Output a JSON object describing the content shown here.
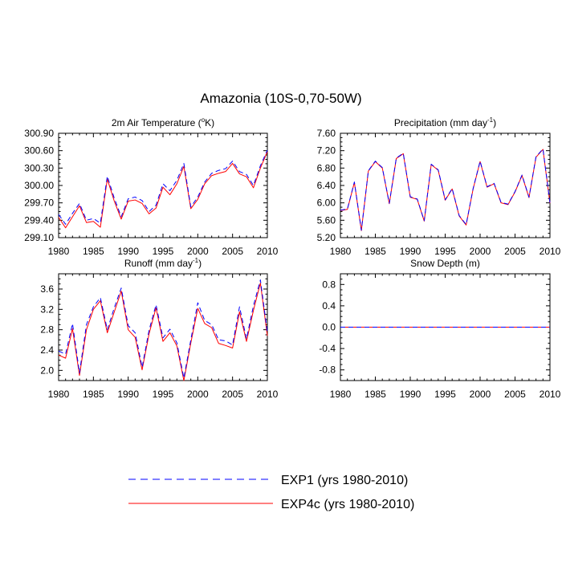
{
  "title": "Amazonia (10S-0,70-50W)",
  "legend": {
    "items": [
      {
        "label": "EXP1 (yrs 1980-2010)",
        "color": "#0000ff",
        "dash": "dashed"
      },
      {
        "label": "EXP4c (yrs 1980-2010)",
        "color": "#ff0000",
        "dash": "solid"
      }
    ]
  },
  "chart_data": [
    {
      "type": "line",
      "title_main": "2m Air Temperature (",
      "title_sup": "o",
      "title_end": "K)",
      "x": [
        1980,
        1981,
        1982,
        1983,
        1984,
        1985,
        1986,
        1987,
        1988,
        1989,
        1990,
        1991,
        1992,
        1993,
        1994,
        1995,
        1996,
        1997,
        1998,
        1999,
        2000,
        2001,
        2002,
        2003,
        2004,
        2005,
        2006,
        2007,
        2008,
        2009,
        2010
      ],
      "xlim": [
        1980,
        2010
      ],
      "xticks": [
        1980,
        1985,
        1990,
        1995,
        2000,
        2005,
        2010
      ],
      "ylim": [
        299.1,
        300.9
      ],
      "yticks": [
        299.1,
        299.4,
        299.7,
        300.0,
        300.3,
        300.6,
        300.9
      ],
      "ytick_labels": [
        "299.10",
        "299.40",
        "299.70",
        "300.00",
        "300.30",
        "300.60",
        "300.90"
      ],
      "series": [
        {
          "name": "EXP1 (yrs 1980-2010)",
          "values": [
            299.5,
            299.33,
            299.52,
            299.69,
            299.4,
            299.43,
            299.35,
            300.16,
            299.78,
            299.46,
            299.77,
            299.8,
            299.74,
            299.55,
            299.66,
            300.03,
            299.91,
            300.09,
            300.38,
            299.63,
            299.8,
            300.06,
            300.21,
            300.26,
            300.29,
            300.42,
            300.24,
            300.19,
            300.0,
            300.34,
            300.61
          ]
        },
        {
          "name": "EXP4c (yrs 1980-2010)",
          "values": [
            299.45,
            299.27,
            299.46,
            299.65,
            299.36,
            299.38,
            299.28,
            300.11,
            299.73,
            299.42,
            299.73,
            299.75,
            299.69,
            299.51,
            299.61,
            299.97,
            299.84,
            300.03,
            300.33,
            299.6,
            299.76,
            300.03,
            300.17,
            300.21,
            300.24,
            300.38,
            300.2,
            300.15,
            299.96,
            300.3,
            300.58
          ]
        }
      ]
    },
    {
      "type": "line",
      "title_main": "Precipitation (mm day",
      "title_sup": "-1",
      "title_end": ")",
      "x": [
        1980,
        1981,
        1982,
        1983,
        1984,
        1985,
        1986,
        1987,
        1988,
        1989,
        1990,
        1991,
        1992,
        1993,
        1994,
        1995,
        1996,
        1997,
        1998,
        1999,
        2000,
        2001,
        2002,
        2003,
        2004,
        2005,
        2006,
        2007,
        2008,
        2009,
        2010
      ],
      "xlim": [
        1980,
        2010
      ],
      "xticks": [
        1980,
        1985,
        1990,
        1995,
        2000,
        2005,
        2010
      ],
      "ylim": [
        5.2,
        7.6
      ],
      "yticks": [
        5.2,
        5.6,
        6.0,
        6.4,
        6.8,
        7.2,
        7.6
      ],
      "ytick_labels": [
        "5.20",
        "5.60",
        "6.00",
        "6.40",
        "6.80",
        "7.20",
        "7.60"
      ],
      "series": [
        {
          "name": "EXP1 (yrs 1980-2010)",
          "values": [
            5.83,
            5.86,
            6.48,
            5.37,
            6.74,
            6.96,
            6.81,
            5.99,
            7.03,
            7.14,
            6.14,
            6.09,
            5.59,
            6.89,
            6.76,
            6.07,
            6.33,
            5.71,
            5.5,
            6.33,
            6.96,
            6.37,
            6.45,
            6.01,
            5.97,
            6.26,
            6.64,
            6.13,
            7.06,
            7.24,
            6.0
          ]
        },
        {
          "name": "EXP4c (yrs 1980-2010)",
          "values": [
            5.82,
            5.85,
            6.47,
            5.36,
            6.73,
            6.95,
            6.8,
            5.98,
            7.02,
            7.13,
            6.13,
            6.08,
            5.58,
            6.88,
            6.75,
            6.06,
            6.32,
            5.7,
            5.49,
            6.32,
            6.95,
            6.36,
            6.44,
            6.0,
            5.96,
            6.25,
            6.63,
            6.12,
            7.05,
            7.23,
            5.99
          ]
        }
      ]
    },
    {
      "type": "line",
      "title_main": "Runoff (mm day",
      "title_sup": "-1",
      "title_end": ")",
      "x": [
        1980,
        1981,
        1982,
        1983,
        1984,
        1985,
        1986,
        1987,
        1988,
        1989,
        1990,
        1991,
        1992,
        1993,
        1994,
        1995,
        1996,
        1997,
        1998,
        1999,
        2000,
        2001,
        2002,
        2003,
        2004,
        2005,
        2006,
        2007,
        2008,
        2009,
        2010
      ],
      "xlim": [
        1980,
        2010
      ],
      "xticks": [
        1980,
        1985,
        1990,
        1995,
        2000,
        2005,
        2010
      ],
      "ylim": [
        1.8,
        3.9
      ],
      "yticks": [
        2.0,
        2.4,
        2.8,
        3.2,
        3.6
      ],
      "ytick_labels": [
        "2.0",
        "2.4",
        "2.8",
        "3.2",
        "3.6"
      ],
      "series": [
        {
          "name": "EXP1 (yrs 1980-2010)",
          "values": [
            2.38,
            2.32,
            2.92,
            1.95,
            2.9,
            3.25,
            3.43,
            2.8,
            3.23,
            3.62,
            2.88,
            2.74,
            2.06,
            2.79,
            3.29,
            2.64,
            2.81,
            2.54,
            1.85,
            2.6,
            3.33,
            2.98,
            2.9,
            2.6,
            2.58,
            2.5,
            3.25,
            2.62,
            3.27,
            3.78,
            2.75
          ]
        },
        {
          "name": "EXP4c (yrs 1980-2010)",
          "values": [
            2.3,
            2.24,
            2.82,
            1.9,
            2.8,
            3.2,
            3.37,
            2.74,
            3.15,
            3.56,
            2.8,
            2.65,
            2.01,
            2.72,
            3.23,
            2.57,
            2.74,
            2.48,
            1.8,
            2.54,
            3.22,
            2.92,
            2.84,
            2.53,
            2.49,
            2.44,
            3.15,
            2.57,
            3.18,
            3.72,
            2.68
          ]
        }
      ]
    },
    {
      "type": "line",
      "title_main": "Snow Depth (m)",
      "title_sup": "",
      "title_end": "",
      "x": [
        1980,
        1981,
        1982,
        1983,
        1984,
        1985,
        1986,
        1987,
        1988,
        1989,
        1990,
        1991,
        1992,
        1993,
        1994,
        1995,
        1996,
        1997,
        1998,
        1999,
        2000,
        2001,
        2002,
        2003,
        2004,
        2005,
        2006,
        2007,
        2008,
        2009,
        2010
      ],
      "xlim": [
        1980,
        2010
      ],
      "xticks": [
        1980,
        1985,
        1990,
        1995,
        2000,
        2005,
        2010
      ],
      "ylim": [
        -1.0,
        1.0
      ],
      "yticks": [
        -0.8,
        -0.4,
        0.0,
        0.4,
        0.8
      ],
      "ytick_labels": [
        "-0.8",
        "-0.4",
        "0.0",
        "0.4",
        "0.8"
      ],
      "series": [
        {
          "name": "EXP1 (yrs 1980-2010)",
          "values": [
            0,
            0,
            0,
            0,
            0,
            0,
            0,
            0,
            0,
            0,
            0,
            0,
            0,
            0,
            0,
            0,
            0,
            0,
            0,
            0,
            0,
            0,
            0,
            0,
            0,
            0,
            0,
            0,
            0,
            0,
            0
          ]
        },
        {
          "name": "EXP4c (yrs 1980-2010)",
          "values": [
            0,
            0,
            0,
            0,
            0,
            0,
            0,
            0,
            0,
            0,
            0,
            0,
            0,
            0,
            0,
            0,
            0,
            0,
            0,
            0,
            0,
            0,
            0,
            0,
            0,
            0,
            0,
            0,
            0,
            0,
            0
          ]
        }
      ]
    }
  ]
}
